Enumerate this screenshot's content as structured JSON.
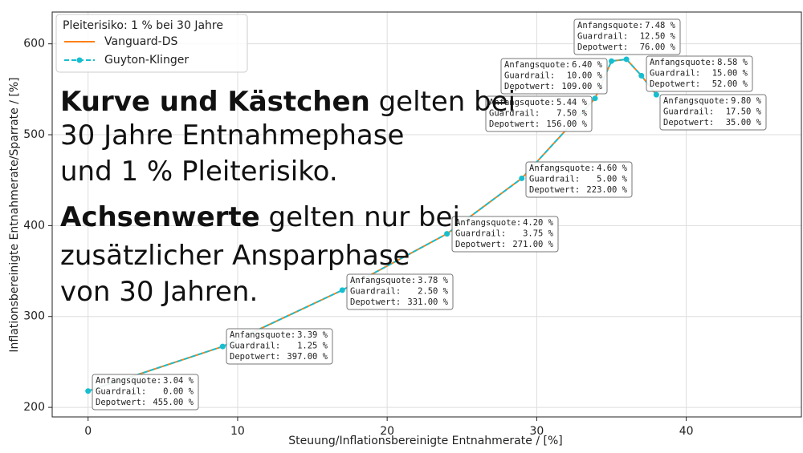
{
  "chart_data": {
    "type": "line",
    "x_label": "Steuung/Inflationsbereinigte Entnahmerate / [%]",
    "y_label": "Inflationsbereinigte Entnahmerate/Sparrate / [%]",
    "x": [
      0,
      9,
      17,
      24,
      29,
      33.9,
      35,
      36,
      37,
      38
    ],
    "series": [
      {
        "name": "Vanguard-DS",
        "color": "#ff7f0e",
        "values": [
          218,
          267,
          329,
          391,
          452,
          540,
          581,
          583,
          565,
          544
        ]
      },
      {
        "name": "Guyton-Klinger",
        "color": "#17becf",
        "values": [
          218,
          267,
          329,
          391,
          452,
          540,
          581,
          583,
          565,
          544
        ]
      }
    ],
    "xlim": [
      -2.4,
      47.7
    ],
    "ylim": [
      189.5,
      635
    ],
    "xticks": [
      0,
      10,
      20,
      30,
      40
    ],
    "yticks": [
      200,
      300,
      400,
      500,
      600
    ],
    "grid": true,
    "legend": {
      "title": "Pleiterisiko: 1 % bei 30 Jahre",
      "loc": "upper left"
    },
    "annotations": [
      {
        "lines": [
          {
            "label": "Anfangsquote:",
            "value": "3.04 %"
          },
          {
            "label": "Guardrail:",
            "value": "0.00 %"
          },
          {
            "label": "Depotwert:",
            "value": "455.00 %"
          }
        ]
      },
      {
        "lines": [
          {
            "label": "Anfangsquote:",
            "value": "3.39 %"
          },
          {
            "label": "Guardrail:",
            "value": "1.25 %"
          },
          {
            "label": "Depotwert:",
            "value": "397.00 %"
          }
        ]
      },
      {
        "lines": [
          {
            "label": "Anfangsquote:",
            "value": "3.78 %"
          },
          {
            "label": "Guardrail:",
            "value": "2.50 %"
          },
          {
            "label": "Depotwert:",
            "value": "331.00 %"
          }
        ]
      },
      {
        "lines": [
          {
            "label": "Anfangsquote:",
            "value": "4.20 %"
          },
          {
            "label": "Guardrail:",
            "value": "3.75 %"
          },
          {
            "label": "Depotwert:",
            "value": "271.00 %"
          }
        ]
      },
      {
        "lines": [
          {
            "label": "Anfangsquote:",
            "value": "4.60 %"
          },
          {
            "label": "Guardrail:",
            "value": "5.00 %"
          },
          {
            "label": "Depotwert:",
            "value": "223.00 %"
          }
        ]
      },
      {
        "lines": [
          {
            "label": "Anfangsquote:",
            "value": "5.44 %"
          },
          {
            "label": "Guardrail:",
            "value": "7.50 %"
          },
          {
            "label": "Depotwert:",
            "value": "156.00 %"
          }
        ]
      },
      {
        "lines": [
          {
            "label": "Anfangsquote:",
            "value": "6.40 %"
          },
          {
            "label": "Guardrail:",
            "value": "10.00 %"
          },
          {
            "label": "Depotwert:",
            "value": "109.00 %"
          }
        ]
      },
      {
        "lines": [
          {
            "label": "Anfangsquote:",
            "value": "7.48 %"
          },
          {
            "label": "Guardrail:",
            "value": "12.50 %"
          },
          {
            "label": "Depotwert:",
            "value": "76.00 %"
          }
        ]
      },
      {
        "lines": [
          {
            "label": "Anfangsquote:",
            "value": "8.58 %"
          },
          {
            "label": "Guardrail:",
            "value": "15.00 %"
          },
          {
            "label": "Depotwert:",
            "value": "52.00 %"
          }
        ]
      },
      {
        "lines": [
          {
            "label": "Anfangsquote:",
            "value": "9.80 %"
          },
          {
            "label": "Guardrail:",
            "value": "17.50 %"
          },
          {
            "label": "Depotwert:",
            "value": "35.00 %"
          }
        ]
      }
    ],
    "overlay": [
      [
        {
          "text": "Kurve und Kästchen",
          "bold": true
        },
        {
          "text": " gelten bei",
          "bold": false
        }
      ],
      [
        {
          "text": "30 Jahre Entnahmephase",
          "bold": false
        }
      ],
      [
        {
          "text": "und 1 % Pleiterisiko.",
          "bold": false
        }
      ],
      [
        {
          "text": "Achsenwerte",
          "bold": true
        },
        {
          "text": " gelten nur bei",
          "bold": false
        }
      ],
      [
        {
          "text": "zusätzlicher Ansparphase",
          "bold": false
        }
      ],
      [
        {
          "text": "von 30 Jahren.",
          "bold": false
        }
      ]
    ]
  }
}
